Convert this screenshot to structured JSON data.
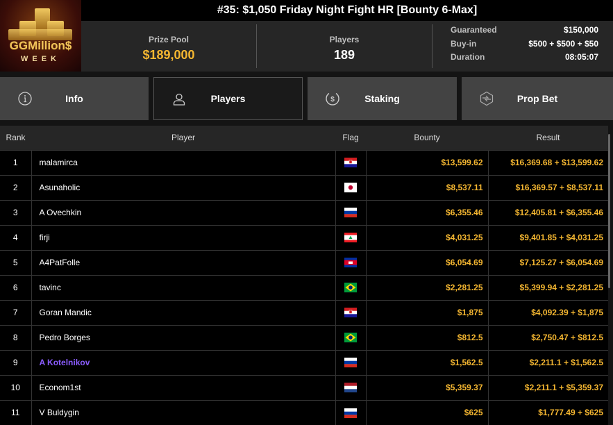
{
  "logo": {
    "text": "GGMillion$",
    "subtext": "WEEK"
  },
  "title": "#35: $1,050 Friday Night Fight HR [Bounty 6-Max]",
  "stats": {
    "prize_pool_label": "Prize Pool",
    "prize_pool": "$189,000",
    "players_label": "Players",
    "players": "189"
  },
  "details": [
    {
      "k": "Guaranteed",
      "v": "$150,000"
    },
    {
      "k": "Buy-in",
      "v": "$500 + $500 + $50"
    },
    {
      "k": "Duration",
      "v": "08:05:07"
    }
  ],
  "tabs": [
    {
      "label": "Info",
      "icon": "info-icon"
    },
    {
      "label": "Players",
      "icon": "user-icon",
      "active": true
    },
    {
      "label": "Staking",
      "icon": "dollar-icon"
    },
    {
      "label": "Prop Bet",
      "icon": "prop-bet-icon"
    }
  ],
  "colors": {
    "accent": "#f5b731",
    "highlight": "#8a5cff"
  },
  "table": {
    "headers": [
      "Rank",
      "Player",
      "Flag",
      "Bounty",
      "Result"
    ],
    "rows": [
      {
        "rank": "1",
        "player": "malamirca",
        "flag": "croatia",
        "bounty": "$13,599.62",
        "result": "$16,369.68 + $13,599.62"
      },
      {
        "rank": "2",
        "player": "Asunaholic",
        "flag": "japan",
        "bounty": "$8,537.11",
        "result": "$16,369.57 + $8,537.11"
      },
      {
        "rank": "3",
        "player": "A Ovechkin",
        "flag": "russia",
        "bounty": "$6,355.46",
        "result": "$12,405.81 + $6,355.46"
      },
      {
        "rank": "4",
        "player": "firji",
        "flag": "lebanon",
        "bounty": "$4,031.25",
        "result": "$9,401.85 + $4,031.25"
      },
      {
        "rank": "5",
        "player": "A4PatFolle",
        "flag": "cambodia",
        "bounty": "$6,054.69",
        "result": "$7,125.27 + $6,054.69"
      },
      {
        "rank": "6",
        "player": "tavinc",
        "flag": "brazil",
        "bounty": "$2,281.25",
        "result": "$5,399.94 + $2,281.25"
      },
      {
        "rank": "7",
        "player": "Goran Mandic",
        "flag": "croatia",
        "bounty": "$1,875",
        "result": "$4,092.39 + $1,875"
      },
      {
        "rank": "8",
        "player": "Pedro Borges",
        "flag": "brazil",
        "bounty": "$812.5",
        "result": "$2,750.47 + $812.5"
      },
      {
        "rank": "9",
        "player": "A Kotelnikov",
        "flag": "russia",
        "bounty": "$1,562.5",
        "result": "$2,211.1 + $1,562.5",
        "highlighted": true
      },
      {
        "rank": "10",
        "player": "Econom1st",
        "flag": "netherlands",
        "bounty": "$5,359.37",
        "result": "$2,211.1 + $5,359.37"
      },
      {
        "rank": "11",
        "player": "V Buldygin",
        "flag": "russia",
        "bounty": "$625",
        "result": "$1,777.49 + $625"
      }
    ]
  }
}
